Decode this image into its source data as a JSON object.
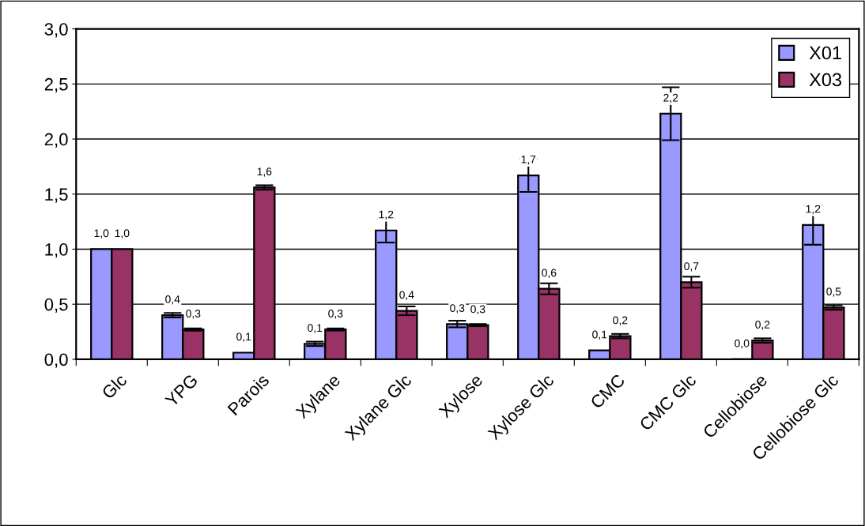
{
  "chart_data": {
    "type": "bar",
    "categories": [
      "Glc",
      "YPG",
      "Parois",
      "Xylane",
      "Xylane Glc",
      "Xylose",
      "Xylose Glc",
      "CMC",
      "CMC Glc",
      "Cellobiose",
      "Cellobiose Glc"
    ],
    "series": [
      {
        "name": "X01",
        "color": "#9999ff",
        "values": [
          1.0,
          0.4,
          0.06,
          0.14,
          1.17,
          0.32,
          1.67,
          0.08,
          2.23,
          0.0,
          1.22
        ],
        "errors": [
          null,
          0.02,
          null,
          0.02,
          0.11,
          0.03,
          0.15,
          null,
          0.24,
          null,
          0.18
        ],
        "value_labels": [
          "1,0",
          "0,4",
          "0,1",
          "0,1",
          "1,2",
          "0,3",
          "1,7",
          "0,1",
          "2,2",
          "0,0",
          "1,2"
        ]
      },
      {
        "name": "X03",
        "color": "#993366",
        "values": [
          1.0,
          0.27,
          1.56,
          0.27,
          0.44,
          0.31,
          0.64,
          0.21,
          0.7,
          0.17,
          0.47
        ],
        "errors": [
          null,
          0.01,
          0.02,
          0.01,
          0.04,
          0.01,
          0.05,
          0.02,
          0.05,
          0.02,
          0.02
        ],
        "value_labels": [
          "1,0",
          "0,3",
          "1,6",
          "0,3",
          "0,4",
          "0,3",
          "0,6",
          "0,2",
          "0,7",
          "0,2",
          "0,5"
        ]
      }
    ],
    "ylim": [
      0,
      3
    ],
    "yticks": [
      {
        "value": 0,
        "label": "0,0"
      },
      {
        "value": 0.5,
        "label": "0,5"
      },
      {
        "value": 1,
        "label": "1,0"
      },
      {
        "value": 1.5,
        "label": "1,5"
      },
      {
        "value": 2,
        "label": "2,0"
      },
      {
        "value": 2.5,
        "label": "2,5"
      },
      {
        "value": 3,
        "label": "3,0"
      }
    ],
    "grid": "y",
    "legend": "top right"
  }
}
